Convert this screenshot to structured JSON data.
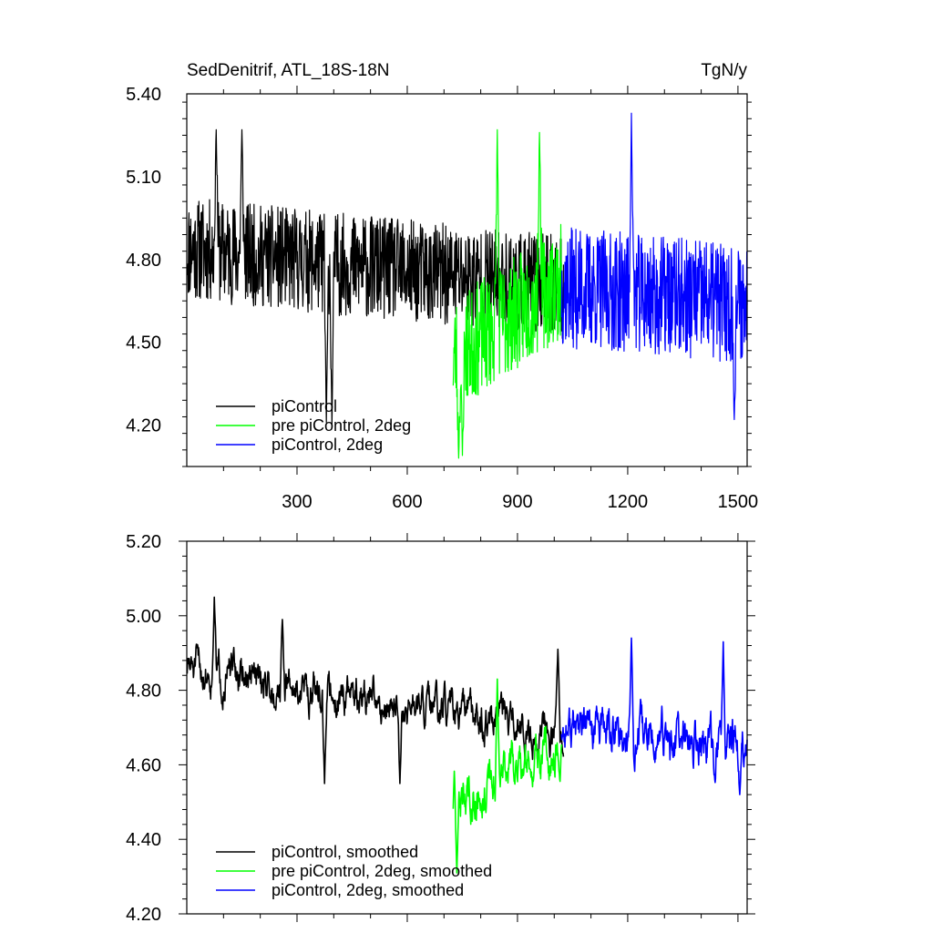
{
  "chart_data": [
    {
      "type": "line",
      "title": "SedDenitrif, ATL_18S-18N",
      "units": "TgN/y",
      "xlim": [
        0,
        1525
      ],
      "ylim": [
        4.05,
        5.4
      ],
      "x_ticks": [
        300,
        600,
        900,
        1200,
        1500
      ],
      "x_tick_labels": [
        "300",
        "600",
        "900",
        "1200",
        "1500"
      ],
      "y_ticks": [
        4.2,
        4.5,
        4.8,
        5.1,
        5.4
      ],
      "y_tick_labels": [
        "4.20",
        "4.50",
        "4.80",
        "5.10",
        "5.40"
      ],
      "legend": [
        {
          "label": "piControl",
          "color": "#000000"
        },
        {
          "label": "pre piControl, 2deg",
          "color": "#00ff00"
        },
        {
          "label": "piControl, 2deg",
          "color": "#0000ff"
        }
      ],
      "legend_position": "bottom-left",
      "series": [
        {
          "name": "piControl",
          "color": "#000000",
          "x_start": 1,
          "x_end": 1025,
          "mean_start": 4.84,
          "mean_end": 4.7,
          "amplitude": 0.34,
          "seed": 11,
          "peaks": [
            [
              80,
              5.27
            ],
            [
              150,
              5.27
            ],
            [
              380,
              4.21
            ],
            [
              395,
              4.2
            ]
          ]
        },
        {
          "name": "pre piControl, 2deg",
          "color": "#00ff00",
          "x_start": 725,
          "x_end": 1020,
          "mean_start": 4.45,
          "mean_end": 4.72,
          "amplitude": 0.38,
          "seed": 23,
          "peaks": [
            [
              740,
              4.08
            ],
            [
              750,
              4.09
            ],
            [
              845,
              5.27
            ],
            [
              960,
              5.26
            ]
          ]
        },
        {
          "name": "piControl, 2deg",
          "color": "#0000ff",
          "x_start": 1020,
          "x_end": 1525,
          "mean_start": 4.7,
          "mean_end": 4.64,
          "amplitude": 0.4,
          "seed": 37,
          "peaks": [
            [
              1210,
              5.33
            ],
            [
              1490,
              4.22
            ]
          ]
        }
      ]
    },
    {
      "type": "line",
      "title": "",
      "xlim": [
        0,
        1525
      ],
      "ylim": [
        4.2,
        5.2
      ],
      "x_ticks": [
        300,
        600,
        900,
        1200,
        1500
      ],
      "y_ticks": [
        4.2,
        4.4,
        4.6,
        4.8,
        5.0,
        5.2
      ],
      "y_tick_labels": [
        "4.20",
        "4.40",
        "4.60",
        "4.80",
        "5.00",
        "5.20"
      ],
      "legend": [
        {
          "label": "piControl, smoothed",
          "color": "#000000"
        },
        {
          "label": "pre piControl, 2deg, smoothed",
          "color": "#00ff00"
        },
        {
          "label": "piControl, 2deg, smoothed",
          "color": "#0000ff"
        }
      ],
      "legend_position": "bottom-left",
      "series": [
        {
          "name": "piControl, smoothed",
          "color": "#000000",
          "x_start": 1,
          "x_end": 1025,
          "mean_start": 4.86,
          "mean_end": 4.68,
          "amplitude": 0.1,
          "seed": 51,
          "peaks": [
            [
              75,
              5.05
            ],
            [
              260,
              4.99
            ],
            [
              375,
              4.55
            ],
            [
              580,
              4.55
            ],
            [
              1010,
              4.91
            ]
          ]
        },
        {
          "name": "pre piControl, 2deg, smoothed",
          "color": "#00ff00",
          "x_start": 725,
          "x_end": 1020,
          "mean_start": 4.5,
          "mean_end": 4.66,
          "amplitude": 0.12,
          "seed": 63,
          "peaks": [
            [
              735,
              4.31
            ],
            [
              845,
              4.83
            ]
          ]
        },
        {
          "name": "piControl, 2deg, smoothed",
          "color": "#0000ff",
          "x_start": 1020,
          "x_end": 1525,
          "mean_start": 4.7,
          "mean_end": 4.63,
          "amplitude": 0.12,
          "seed": 77,
          "peaks": [
            [
              1210,
              4.94
            ],
            [
              1460,
              4.93
            ],
            [
              1505,
              4.52
            ]
          ]
        }
      ]
    }
  ]
}
